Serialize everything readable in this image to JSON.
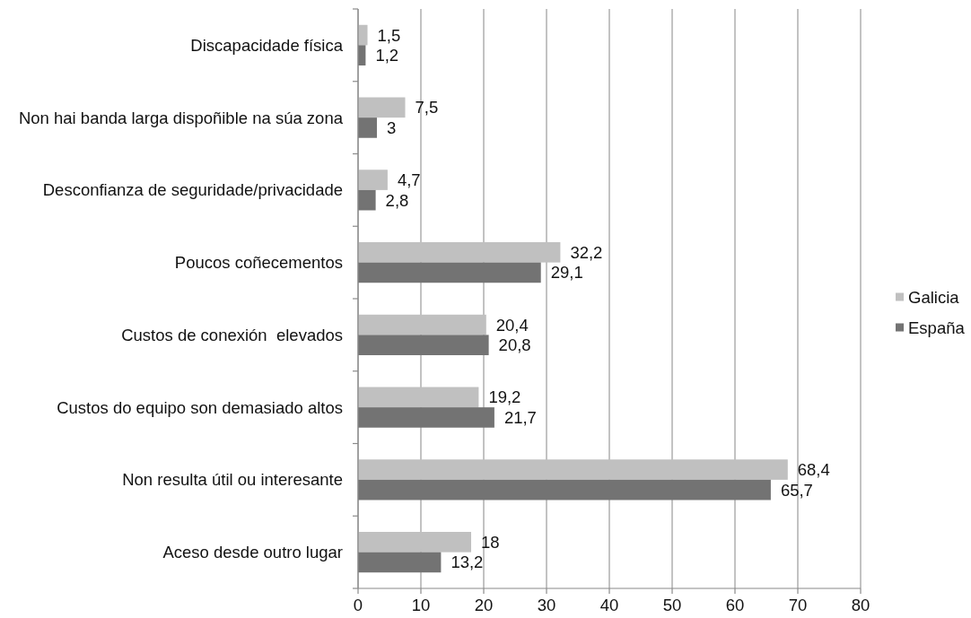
{
  "chart_data": {
    "type": "bar",
    "orientation": "horizontal",
    "categories": [
      "Discapacidade física",
      "Non hai banda larga dispoñible na súa zona",
      "Desconfianza de seguridade/privacidade",
      "Poucos coñecementos",
      "Custos de conexión  elevados",
      "Custos do equipo son demasiado altos",
      "Non resulta útil ou interesante",
      "Aceso desde outro lugar"
    ],
    "series": [
      {
        "name": "Galicia",
        "color": "#c0c0c0",
        "values": [
          1.5,
          7.5,
          4.7,
          32.2,
          20.4,
          19.2,
          68.4,
          18
        ],
        "value_labels": [
          "1,5",
          "7,5",
          "4,7",
          "32,2",
          "20,4",
          "19,2",
          "68,4",
          "18"
        ]
      },
      {
        "name": "España",
        "color": "#737373",
        "values": [
          1.2,
          3,
          2.8,
          29.1,
          20.8,
          21.7,
          65.7,
          13.2
        ],
        "value_labels": [
          "1,2",
          "3",
          "2,8",
          "29,1",
          "20,8",
          "21,7",
          "65,7",
          "13,2"
        ]
      }
    ],
    "xlim": [
      0,
      80
    ],
    "xticks": [
      0,
      10,
      20,
      30,
      40,
      50,
      60,
      70,
      80
    ],
    "grid": "x",
    "legend": "right"
  }
}
